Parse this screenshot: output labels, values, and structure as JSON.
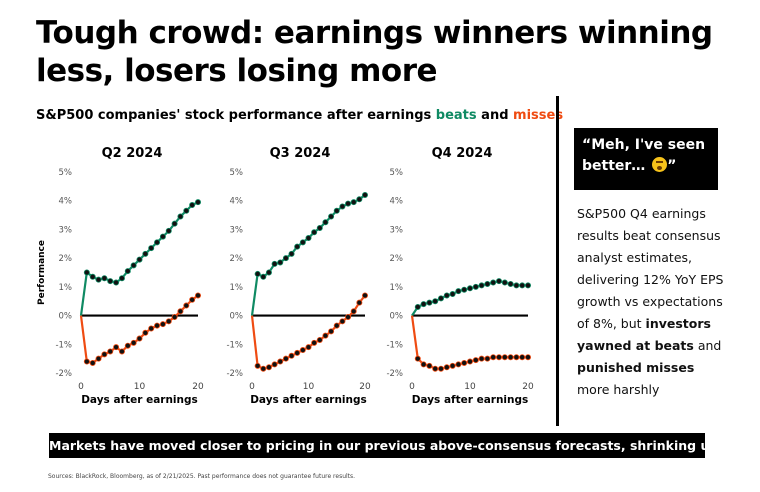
{
  "headline": "Tough crowd: earnings winners winning less, losers losing more",
  "subtitle": {
    "prefix": "S&P500 companies' stock performance after earnings ",
    "beats": "beats",
    "and": " and ",
    "misses": "misses"
  },
  "quote": "“Meh, I've seen better…",
  "quote_end": "”",
  "note": {
    "part1": "S&P500 Q4 earnings results beat consensus analyst estimates, delivering 12% YoY EPS growth vs expectations of 8%, but ",
    "bold1": "investors yawned at beats",
    "part2": " and ",
    "bold2": "punished misses",
    "part3": " more harshly"
  },
  "banner": "Markets have moved closer to pricing in our previous above-consensus forecasts, shrinking upside",
  "source": "Sources: BlackRock, Bloomberg, as of 2/21/2025. Past performance does not guarantee future results.",
  "colors": {
    "beats": "#0f8a63",
    "misses": "#ef4b12",
    "zero_line": "#000000"
  },
  "chart_data": [
    {
      "type": "line",
      "title": "Q2 2024",
      "xlabel": "Days after earnings",
      "ylabel": "Performance",
      "xlim": [
        0,
        20
      ],
      "ylim": [
        -2,
        5
      ],
      "x_ticks": [
        0,
        10,
        20
      ],
      "y_ticks": [
        "-2%",
        "-1%",
        "0%",
        "1%",
        "2%",
        "3%",
        "4%",
        "5%"
      ],
      "x": [
        0,
        1,
        2,
        3,
        4,
        5,
        6,
        7,
        8,
        9,
        10,
        11,
        12,
        13,
        14,
        15,
        16,
        17,
        18,
        19,
        20
      ],
      "series": [
        {
          "name": "beats",
          "values": [
            0,
            1.5,
            1.35,
            1.25,
            1.3,
            1.2,
            1.15,
            1.3,
            1.55,
            1.75,
            1.95,
            2.15,
            2.35,
            2.55,
            2.75,
            2.95,
            3.2,
            3.45,
            3.65,
            3.85,
            3.95
          ]
        },
        {
          "name": "misses",
          "values": [
            0,
            -1.6,
            -1.65,
            -1.5,
            -1.35,
            -1.25,
            -1.1,
            -1.25,
            -1.05,
            -0.95,
            -0.8,
            -0.6,
            -0.45,
            -0.35,
            -0.3,
            -0.2,
            -0.05,
            0.15,
            0.35,
            0.55,
            0.7
          ]
        }
      ]
    },
    {
      "type": "line",
      "title": "Q3 2024",
      "xlabel": "Days after earnings",
      "ylabel": "",
      "xlim": [
        0,
        20
      ],
      "ylim": [
        -2,
        5
      ],
      "x_ticks": [
        0,
        10,
        20
      ],
      "y_ticks": [
        "-2%",
        "-1%",
        "0%",
        "1%",
        "2%",
        "3%",
        "4%",
        "5%"
      ],
      "x": [
        0,
        1,
        2,
        3,
        4,
        5,
        6,
        7,
        8,
        9,
        10,
        11,
        12,
        13,
        14,
        15,
        16,
        17,
        18,
        19,
        20
      ],
      "series": [
        {
          "name": "beats",
          "values": [
            0,
            1.45,
            1.35,
            1.5,
            1.8,
            1.85,
            2.0,
            2.15,
            2.4,
            2.55,
            2.7,
            2.9,
            3.05,
            3.25,
            3.45,
            3.65,
            3.8,
            3.9,
            3.95,
            4.05,
            4.2
          ]
        },
        {
          "name": "misses",
          "values": [
            0,
            -1.75,
            -1.85,
            -1.8,
            -1.7,
            -1.6,
            -1.5,
            -1.4,
            -1.3,
            -1.2,
            -1.1,
            -0.95,
            -0.85,
            -0.7,
            -0.55,
            -0.35,
            -0.2,
            -0.05,
            0.15,
            0.45,
            0.7
          ]
        }
      ]
    },
    {
      "type": "line",
      "title": "Q4 2024",
      "xlabel": "Days after earnings",
      "ylabel": "",
      "xlim": [
        0,
        20
      ],
      "ylim": [
        -2,
        5
      ],
      "x_ticks": [
        0,
        10,
        20
      ],
      "y_ticks": [
        "-2%",
        "-1%",
        "0%",
        "1%",
        "2%",
        "3%",
        "4%",
        "5%"
      ],
      "x": [
        0,
        1,
        2,
        3,
        4,
        5,
        6,
        7,
        8,
        9,
        10,
        11,
        12,
        13,
        14,
        15,
        16,
        17,
        18,
        19,
        20
      ],
      "series": [
        {
          "name": "beats",
          "values": [
            0,
            0.3,
            0.4,
            0.45,
            0.5,
            0.6,
            0.7,
            0.75,
            0.85,
            0.9,
            0.95,
            1.0,
            1.05,
            1.1,
            1.15,
            1.2,
            1.15,
            1.1,
            1.05,
            1.05,
            1.05
          ]
        },
        {
          "name": "misses",
          "values": [
            0,
            -1.5,
            -1.7,
            -1.75,
            -1.85,
            -1.85,
            -1.8,
            -1.75,
            -1.7,
            -1.65,
            -1.6,
            -1.55,
            -1.5,
            -1.5,
            -1.45,
            -1.45,
            -1.45,
            -1.45,
            -1.45,
            -1.45,
            -1.45
          ]
        }
      ]
    }
  ]
}
